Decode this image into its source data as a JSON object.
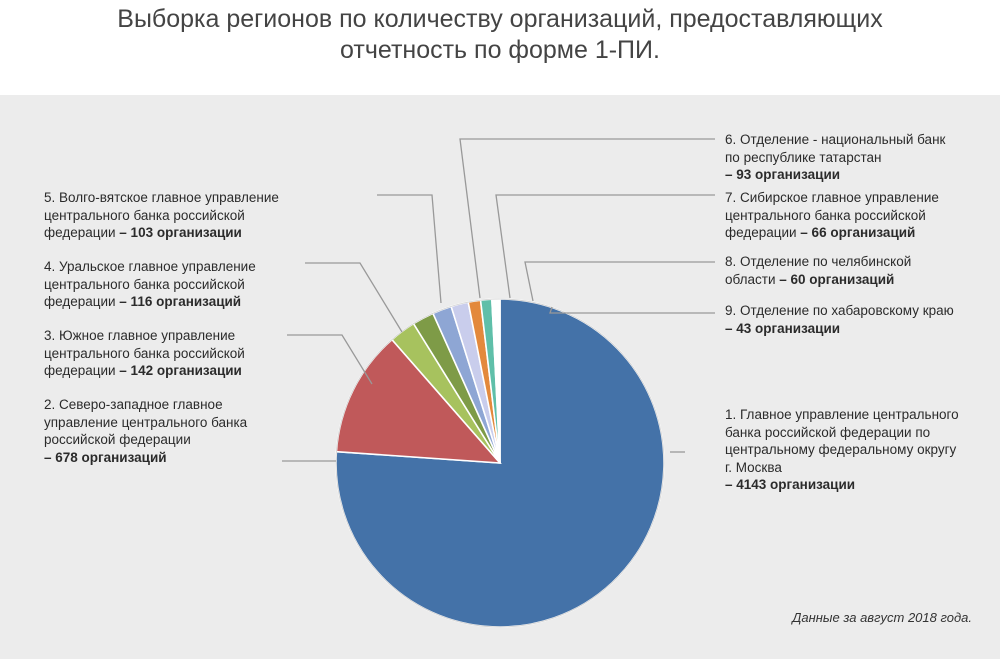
{
  "title_lines": [
    "Выборка регионов по количеству организаций, предоставляющих",
    "отчетность по форме 1-ПИ."
  ],
  "footnote": "Данные за август 2018 года.",
  "chart_data": {
    "type": "pie",
    "title": "Выборка регионов по количеству организаций, предоставляющих отчетность по форме 1-ПИ.",
    "unit": "организаций",
    "slices": [
      {
        "label_lines": [
          "1. Главное управление центрального",
          "банка российской федерации по",
          "центральному федеральному округу",
          "г. Москва"
        ],
        "value_text": "– 4143 организации",
        "value": 4143,
        "color": "#4472a8"
      },
      {
        "label_lines": [
          "2. Северо-западное главное",
          "управление центрального банка",
          "российской федерации"
        ],
        "value_text": "– 678 организаций",
        "value": 678,
        "color": "#c0595a"
      },
      {
        "label_lines": [
          "3. Южное главное управление",
          "центрального банка российской"
        ],
        "value_prefix": "федерации ",
        "value_text": "– 142 организации",
        "value": 142,
        "color": "#a7c25e"
      },
      {
        "label_lines": [
          "4. Уральское главное управление",
          "центрального банка российской"
        ],
        "value_prefix": "федерации ",
        "value_text": "– 116 организаций",
        "value": 116,
        "color": "#7e9b47"
      },
      {
        "label_lines": [
          "5. Волго-вятское главное управление",
          "центрального банка российской"
        ],
        "value_prefix": "федерации ",
        "value_text": "– 103 организации",
        "value": 103,
        "color": "#8ea6d4"
      },
      {
        "label_lines": [
          "6. Отделение - национальный банк",
          "по республике татарстан"
        ],
        "value_text": "– 93 организации",
        "value": 93,
        "color": "#c9cdec"
      },
      {
        "label_lines": [
          "7. Сибирское главное управление",
          "центрального банка российской"
        ],
        "value_prefix": "федерации ",
        "value_text": "– 66 организаций",
        "value": 66,
        "color": "#e3893c"
      },
      {
        "label_lines": [
          "8. Отделение по челябинской"
        ],
        "value_prefix": "области ",
        "value_text": "– 60 организаций",
        "value": 60,
        "color": "#5fbfa9"
      },
      {
        "label_lines": [
          "9. Отделение по хабаровскому краю"
        ],
        "value_text": "– 43 организации",
        "value": 43,
        "color": "#ffffff"
      }
    ]
  }
}
